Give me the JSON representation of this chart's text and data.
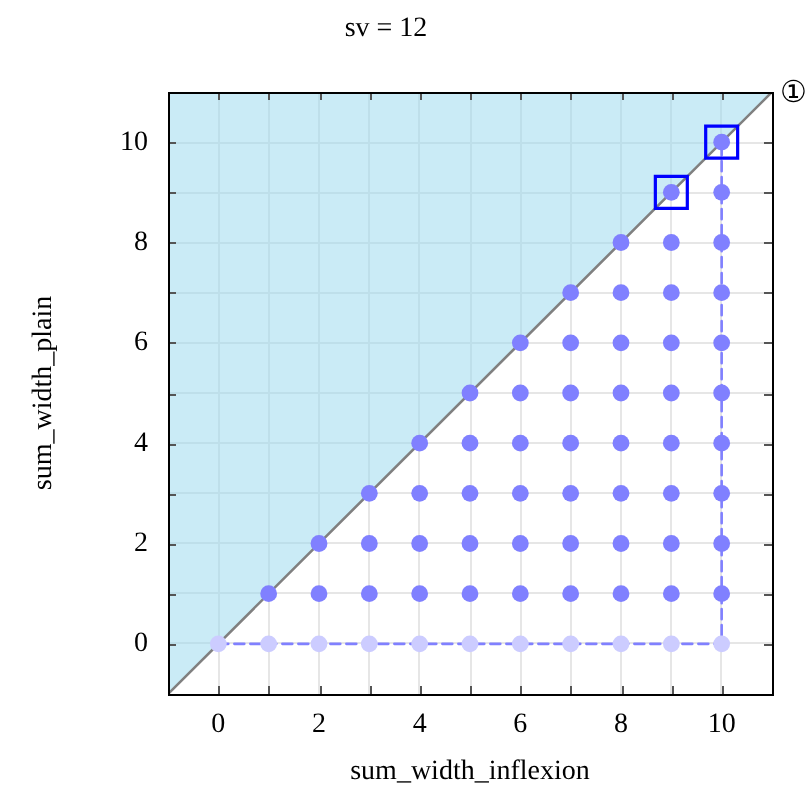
{
  "chart_data": {
    "type": "scatter",
    "title": "sv = 12",
    "xlabel": "sum_width_inflexion",
    "ylabel": "sum_width_plain",
    "xlim": [
      -1,
      11
    ],
    "ylim": [
      -1,
      11
    ],
    "xticks": [
      0,
      {
        "value": 1,
        "label": null
      },
      2,
      {
        "value": 3,
        "label": null
      },
      4,
      {
        "value": 5,
        "label": null
      },
      6,
      {
        "value": 7,
        "label": null
      },
      8,
      {
        "value": 9,
        "label": null
      },
      10
    ],
    "yticks": [
      0,
      {
        "value": 1,
        "label": null
      },
      2,
      {
        "value": 3,
        "label": null
      },
      4,
      {
        "value": 5,
        "label": null
      },
      6,
      {
        "value": 7,
        "label": null
      },
      8,
      {
        "value": 9,
        "label": null
      },
      10
    ],
    "grid": true,
    "annotations": [
      {
        "text": "①",
        "x": 11,
        "y": 11
      }
    ],
    "series": [
      {
        "type": "line",
        "color": "#808080",
        "x": [
          -1,
          11
        ],
        "values": [
          -1,
          11
        ],
        "lower": [
          -1,
          11
        ],
        "upper": [
          11,
          11
        ],
        "marker": "none"
      },
      {
        "type": "line",
        "color": "#8080ff",
        "x": [
          0,
          10,
          10
        ],
        "values": [
          0,
          0,
          10
        ],
        "marker": "none",
        "line_style": "dashed"
      },
      {
        "type": "scatter",
        "color": "#ccccff",
        "x": [
          0,
          1,
          2,
          3,
          4,
          5,
          6,
          7,
          8,
          9,
          10
        ],
        "values": [
          0,
          0,
          0,
          0,
          0,
          0,
          0,
          0,
          0,
          0,
          0
        ],
        "marker": "circle"
      },
      {
        "type": "scatter",
        "color": "#8080ff",
        "x": [
          1,
          2,
          2,
          3,
          3,
          3,
          4,
          4,
          4,
          4,
          5,
          5,
          5,
          5,
          5,
          6,
          6,
          6,
          6,
          6,
          6,
          7,
          7,
          7,
          7,
          7,
          7,
          7,
          8,
          8,
          8,
          8,
          8,
          8,
          8,
          8,
          9,
          9,
          9,
          9,
          9,
          9,
          9,
          9,
          9,
          10,
          10,
          10,
          10,
          10,
          10,
          10,
          10,
          10,
          10
        ],
        "values": [
          1,
          1,
          2,
          1,
          2,
          3,
          1,
          2,
          3,
          4,
          1,
          2,
          3,
          4,
          5,
          1,
          2,
          3,
          4,
          5,
          6,
          1,
          2,
          3,
          4,
          5,
          6,
          7,
          1,
          2,
          3,
          4,
          5,
          6,
          7,
          8,
          1,
          2,
          3,
          4,
          5,
          6,
          7,
          8,
          9,
          1,
          2,
          3,
          4,
          5,
          6,
          7,
          8,
          9,
          10
        ],
        "marker": "circle"
      },
      {
        "type": "scatter",
        "color": "#0000ff",
        "x": [
          9,
          10
        ],
        "values": [
          9,
          10
        ],
        "marker": "square"
      }
    ]
  }
}
